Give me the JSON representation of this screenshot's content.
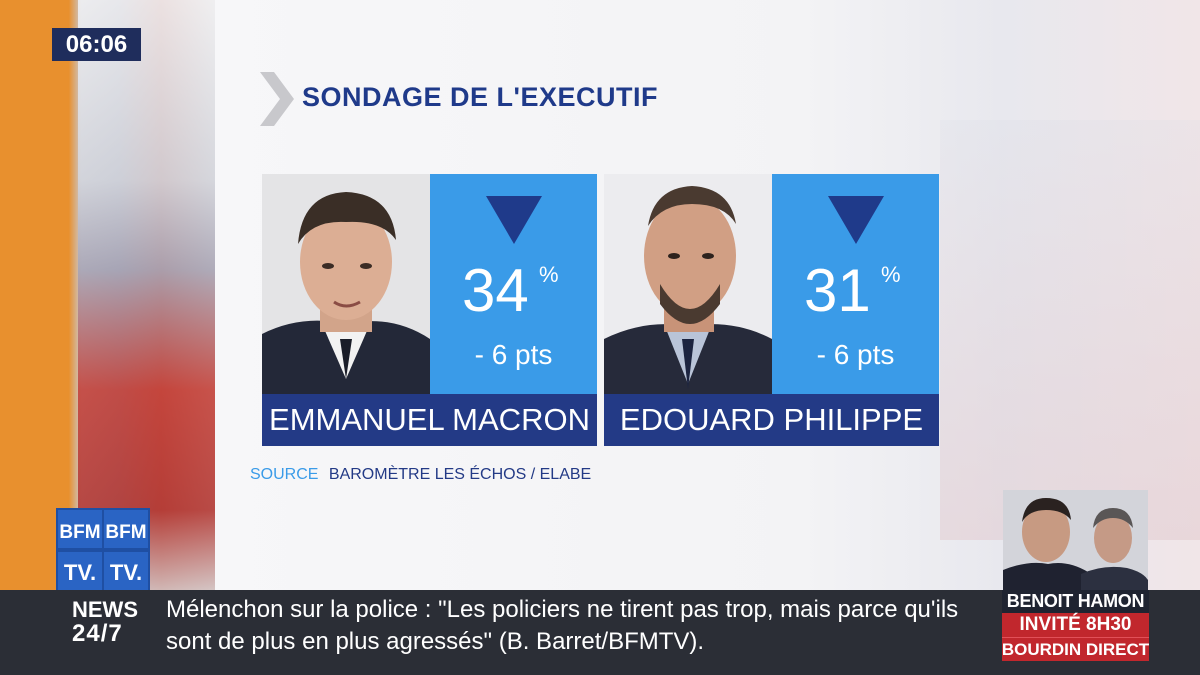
{
  "clock": "06:06",
  "title": "SONDAGE DE L'EXECUTIF",
  "cards": [
    {
      "name": "EMMANUEL MACRON",
      "value": "34",
      "unit": "%",
      "delta": "- 6 pts",
      "trend": "down"
    },
    {
      "name": "EDOUARD PHILIPPE",
      "value": "31",
      "unit": "%",
      "delta": "- 6 pts",
      "trend": "down"
    }
  ],
  "source": {
    "label": "SOURCE",
    "value": "BAROMÈTRE LES ÉCHOS / ELABE"
  },
  "logo": {
    "line1a": "BFM",
    "line1b": "BFM",
    "line2a": "TV.",
    "line2b": "TV."
  },
  "ticker": {
    "channel_line1": "NEWS",
    "channel_line2": "24/7",
    "text": "Mélenchon sur la police : \"Les policiers ne tirent pas trop, mais parce qu'ils sont de plus en plus agressés\" (B. Barret/BFMTV)."
  },
  "guest": {
    "name": "BENOIT HAMON",
    "invite": "INVITÉ 8H30",
    "show": "BOURDIN DIRECT"
  },
  "colors": {
    "accent_blue": "#3a9be8",
    "navy": "#233a86",
    "red": "#c1272d"
  }
}
